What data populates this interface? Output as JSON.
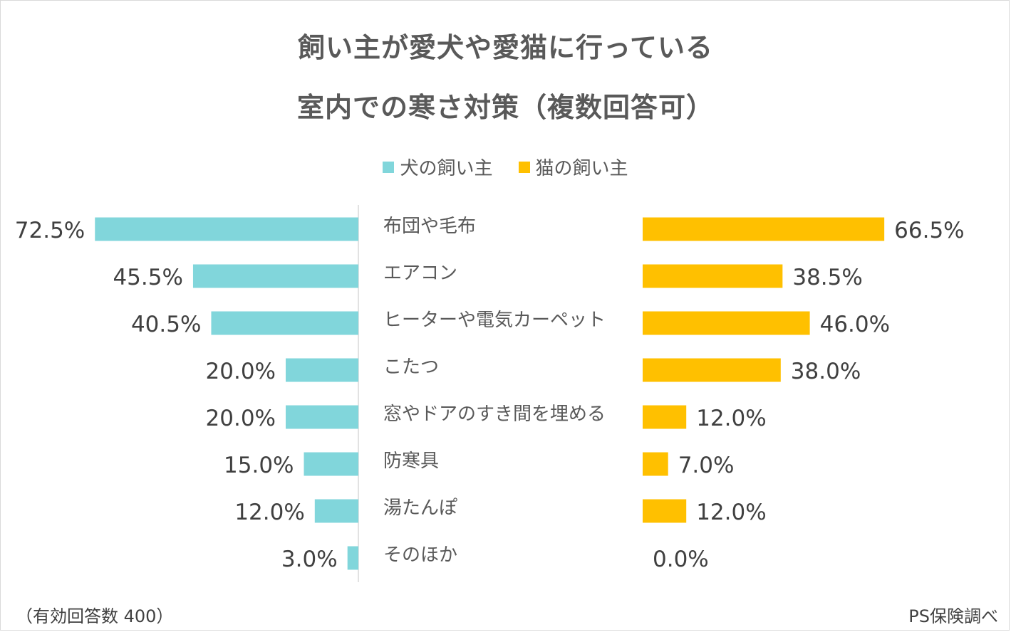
{
  "title_lines": [
    "飼い主が愛犬や愛猫に行っている",
    "室内での寒さ対策（複数回答可）"
  ],
  "legend": [
    {
      "label": "犬の飼い主",
      "color": "#81d6db"
    },
    {
      "label": "猫の飼い主",
      "color": "#ffc000"
    }
  ],
  "footer": {
    "note": "（有効回答数 400）",
    "source": "PS保険調べ"
  },
  "chart_data": {
    "type": "bar",
    "orientation": "horizontal-butterfly",
    "categories": [
      "布団や毛布",
      "エアコン",
      "ヒーターや電気カーペット",
      "こたつ",
      "窓やドアのすき間を埋める",
      "防寒具",
      "湯たんぽ",
      "そのほか"
    ],
    "series": [
      {
        "name": "犬の飼い主",
        "color": "#81d6db",
        "values": [
          72.5,
          45.5,
          40.5,
          20.0,
          20.0,
          15.0,
          12.0,
          3.0
        ],
        "labels": [
          "72.5%",
          "45.5%",
          "40.5%",
          "20.0%",
          "20.0%",
          "15.0%",
          "12.0%",
          "3.0%"
        ]
      },
      {
        "name": "猫の飼い主",
        "color": "#ffc000",
        "values": [
          66.5,
          38.5,
          46.0,
          38.0,
          12.0,
          7.0,
          12.0,
          0.0
        ],
        "labels": [
          "66.5%",
          "38.5%",
          "46.0%",
          "38.0%",
          "12.0%",
          "7.0%",
          "12.0%",
          "0.0%"
        ]
      }
    ],
    "xlim": [
      0,
      100
    ],
    "legend_position": "top-center",
    "grid": false
  }
}
